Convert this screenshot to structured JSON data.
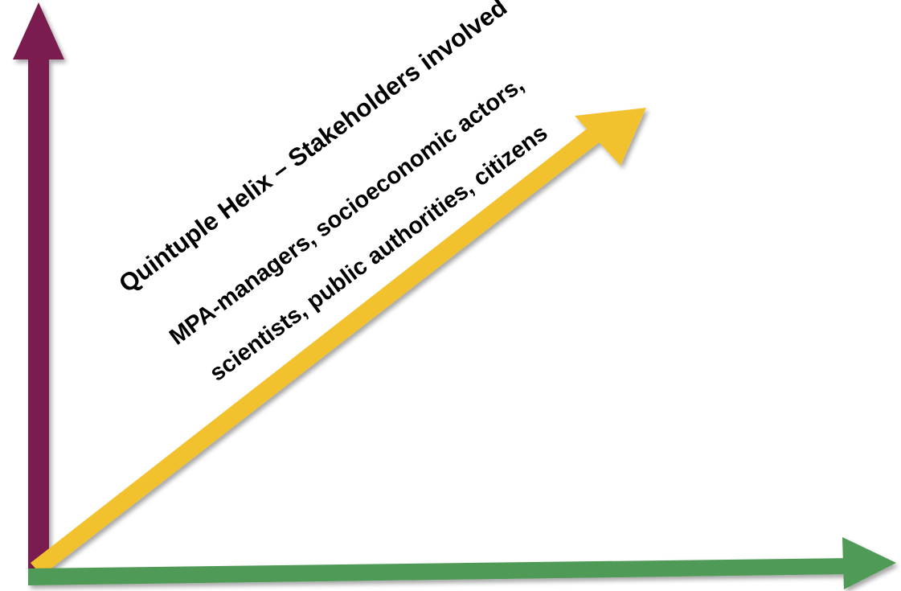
{
  "diagram": {
    "axes": {
      "vertical": {
        "color": "#7a1f4f"
      },
      "diagonal": {
        "color": "#f2c12e"
      },
      "horizontal": {
        "color": "#4f9a57"
      }
    },
    "labels": {
      "title": "Quintuple Helix – Stakeholders involved",
      "line1": "MPA-managers, socioeconomic actors,",
      "line2": "scientists, public authorities, citizens"
    }
  }
}
